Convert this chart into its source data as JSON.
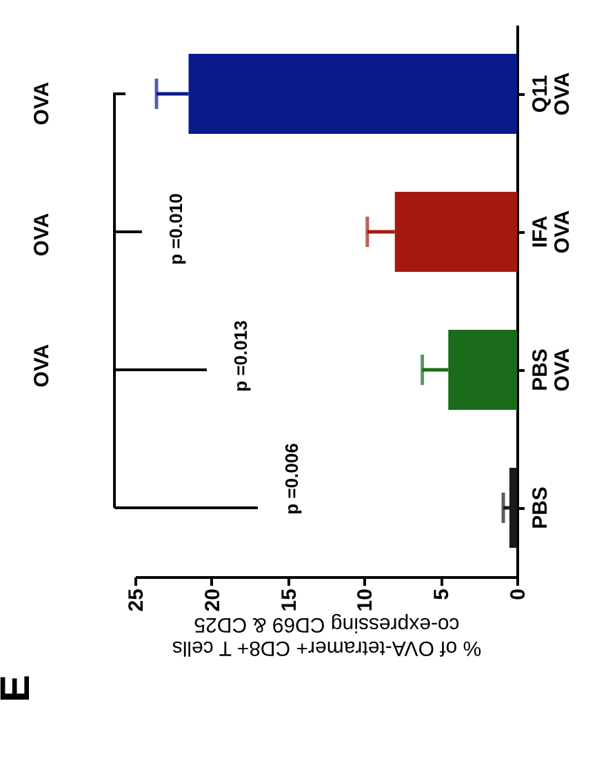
{
  "chart_data": {
    "type": "bar",
    "orientation": "horizontal",
    "title": "E",
    "xlabel": "% of OVA-tetramer+ CD8+ T cells\nco-expressing CD69 & CD25",
    "categories": [
      "Q11 OVA",
      "IFA OVA",
      "PBS OVA",
      "PBS"
    ],
    "values": [
      21.5,
      8.0,
      4.5,
      0.5
    ],
    "errors": [
      2.1,
      1.8,
      1.7,
      0.4
    ],
    "colors": [
      "#0b1a8a",
      "#a3190d",
      "#1a6b1a",
      "#1a1a1a"
    ],
    "xlim": [
      25,
      0
    ],
    "xticks": [
      25,
      20,
      15,
      10,
      5,
      0
    ],
    "annotations": [
      "p =0.006",
      "p =0.013",
      "p =0.010",
      "OVA",
      "OVA",
      "OVA"
    ]
  }
}
